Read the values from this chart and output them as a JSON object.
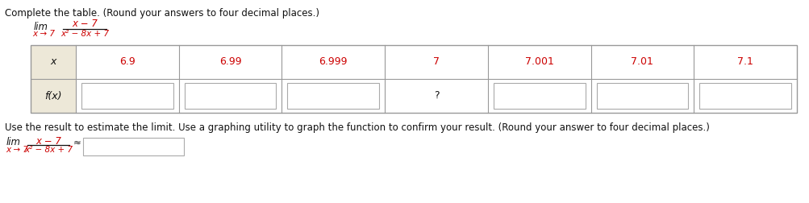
{
  "title_text": "Complete the table. (Round your answers to four decimal places.)",
  "x_values": [
    "6.9",
    "6.99",
    "6.999",
    "7",
    "7.001",
    "7.01",
    "7.1"
  ],
  "row1_label": "x",
  "row2_label": "f(x)",
  "question_mark": "?",
  "bottom_instruction": "Use the result to estimate the limit. Use a graphing utility to graph the function to confirm your result. (Round your answer to four decimal places.)",
  "approx_symbol": "≈",
  "red_color": "#cc0000",
  "black_color": "#111111",
  "gray_bg": "#ede8d8",
  "table_border": "#999999",
  "input_box_border": "#aaaaaa",
  "background_color": "#ffffff",
  "font_size_title": 8.5,
  "font_size_table": 9.0,
  "font_size_lim": 8.5,
  "font_size_small": 7.5
}
